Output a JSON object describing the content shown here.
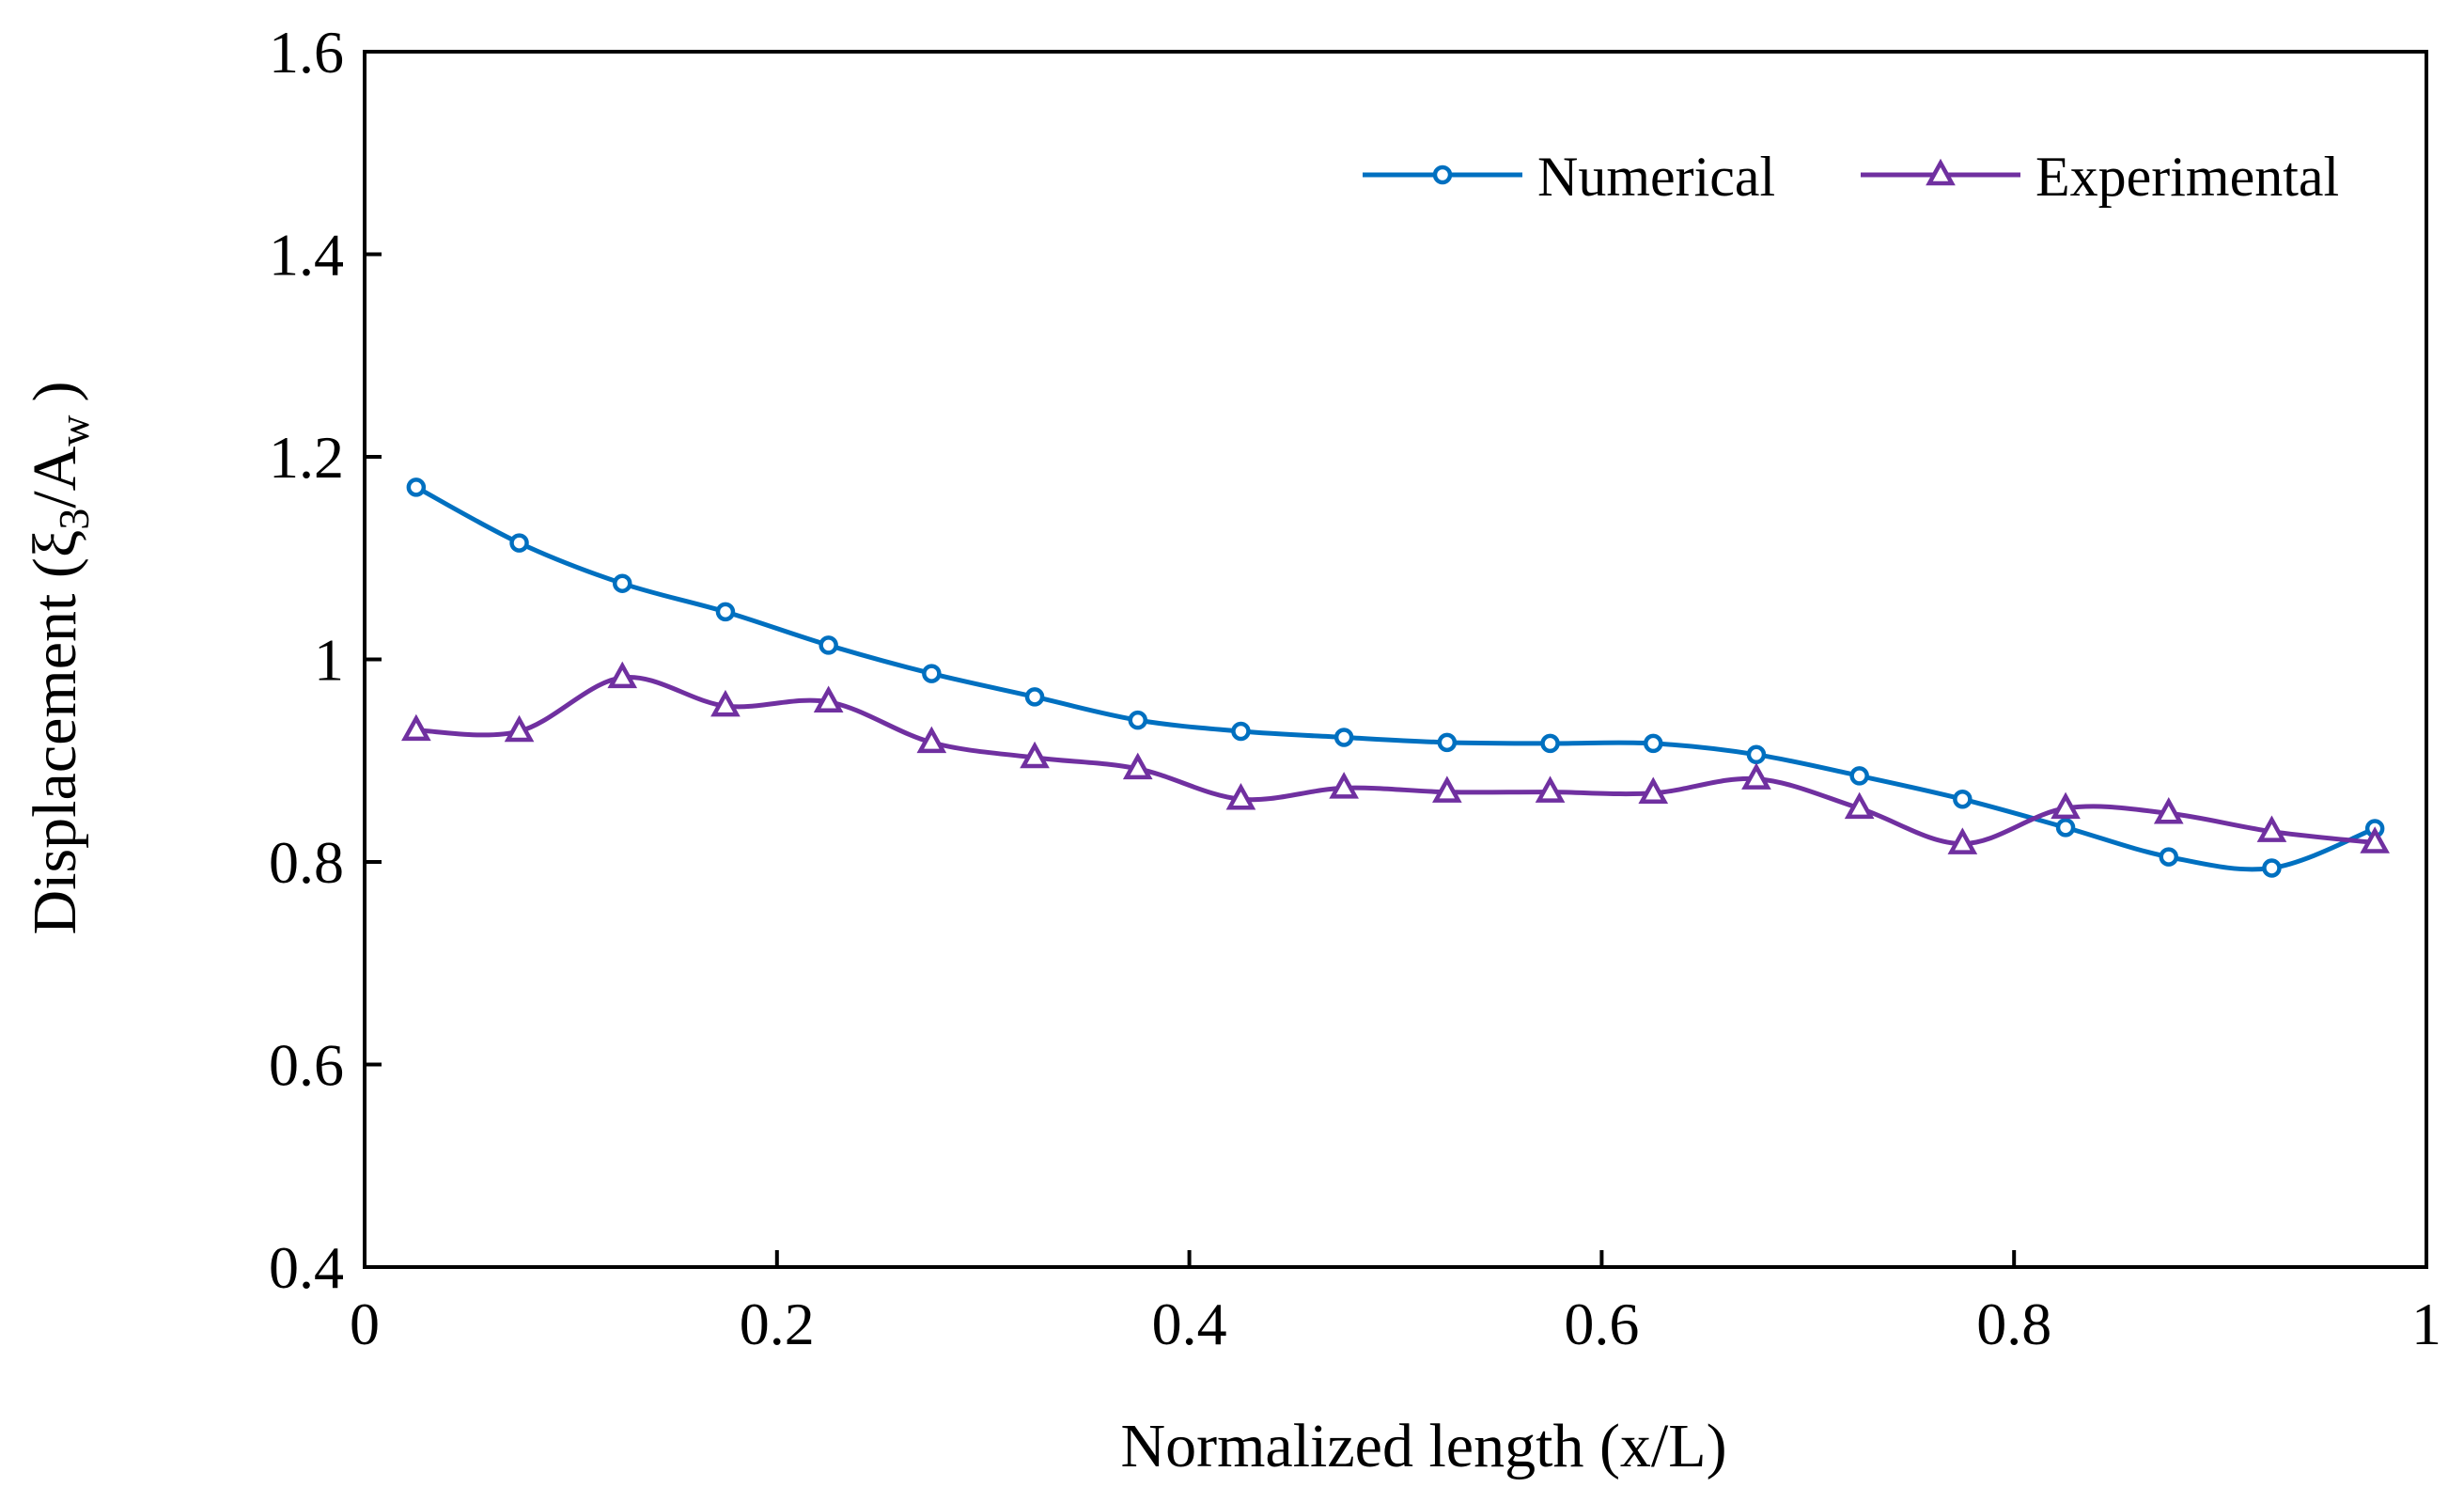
{
  "chart_data": {
    "type": "line",
    "title": "",
    "xlabel": "Normalized  length (x/L)",
    "ylabel": {
      "prefix": "Displacement  (",
      "xi": "ξ",
      "xi_sub": "3",
      "slash_a": "/A",
      "a_sub": "w",
      "suffix": ")"
    },
    "xlim": [
      0,
      1
    ],
    "ylim": [
      0.4,
      1.6
    ],
    "xticks": [
      0,
      0.2,
      0.4,
      0.6,
      0.8,
      1
    ],
    "xtick_labels": [
      "0",
      "0.2",
      "0.4",
      "0.6",
      "0.8",
      "1"
    ],
    "yticks": [
      0.4,
      0.6,
      0.8,
      1.0,
      1.2,
      1.4,
      1.6
    ],
    "ytick_labels": [
      "0.4",
      "0.6",
      "0.8",
      "1",
      "1.2",
      "1.4",
      "1.6"
    ],
    "grid": false,
    "legend_position": "top-right",
    "x": [
      0.025,
      0.075,
      0.125,
      0.175,
      0.225,
      0.275,
      0.325,
      0.375,
      0.425,
      0.475,
      0.525,
      0.575,
      0.625,
      0.675,
      0.725,
      0.775,
      0.825,
      0.875,
      0.925,
      0.975
    ],
    "series": [
      {
        "name": "Numerical",
        "color": "#0070C0",
        "marker": "circle",
        "values": [
          1.17,
          1.115,
          1.075,
          1.047,
          1.014,
          0.986,
          0.963,
          0.94,
          0.929,
          0.923,
          0.918,
          0.917,
          0.917,
          0.906,
          0.885,
          0.862,
          0.834,
          0.805,
          0.794,
          0.833
        ]
      },
      {
        "name": "Experimental",
        "color": "#7030A0",
        "marker": "triangle",
        "values": [
          0.93,
          0.929,
          0.982,
          0.954,
          0.958,
          0.918,
          0.903,
          0.892,
          0.862,
          0.873,
          0.869,
          0.869,
          0.868,
          0.882,
          0.853,
          0.818,
          0.853,
          0.848,
          0.83,
          0.819
        ]
      }
    ]
  }
}
